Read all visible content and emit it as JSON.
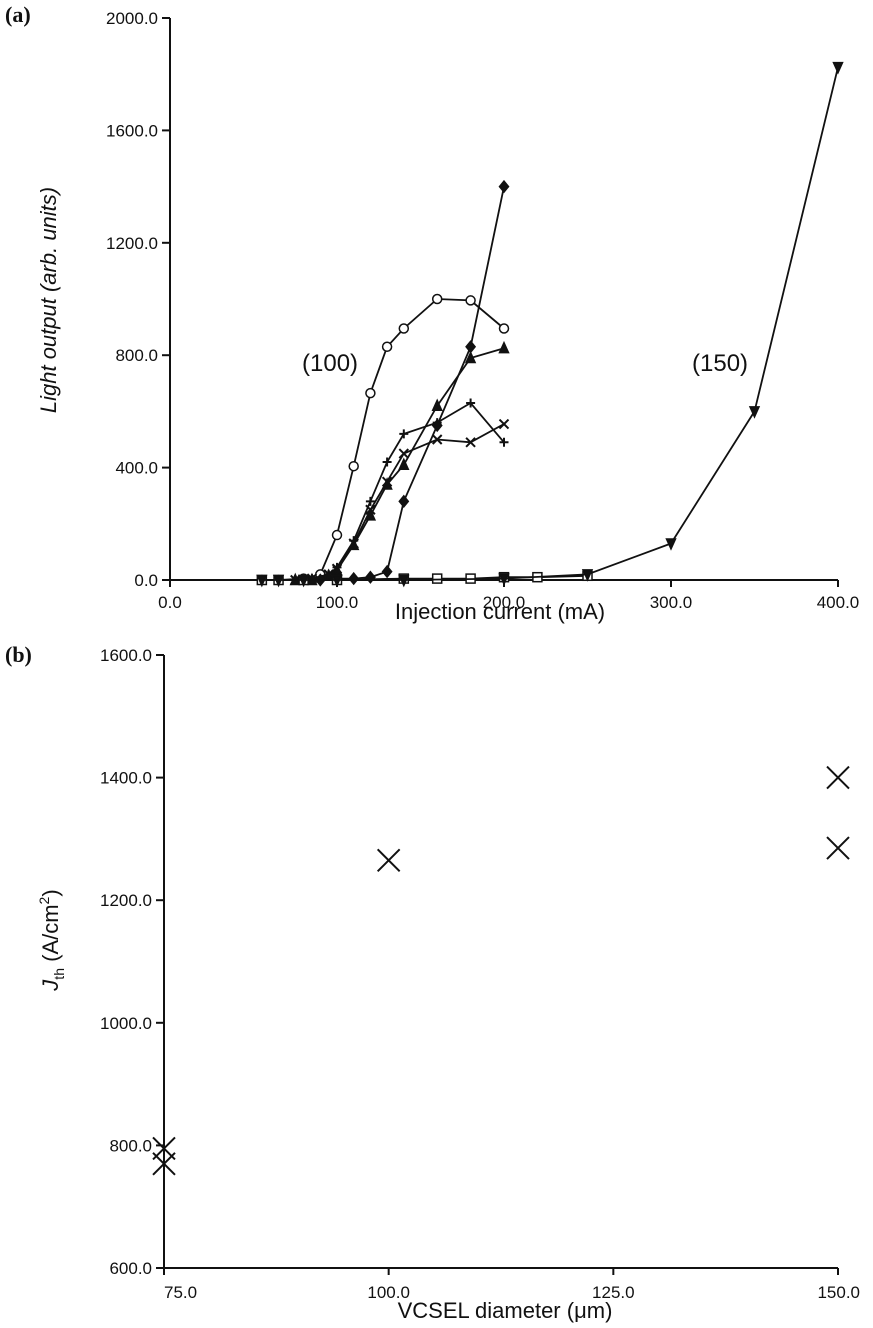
{
  "chart_data": [
    {
      "panel": "(a)",
      "type": "line",
      "xlabel": "Injection current (mA)",
      "ylabel": "Light output (arb. units)",
      "xlim": [
        0,
        400
      ],
      "ylim": [
        0,
        2000
      ],
      "xticks": [
        "0.0",
        "100.0",
        "200.0",
        "300.0",
        "400.0"
      ],
      "yticks": [
        "0.0",
        "400.0",
        "800.0",
        "1200.0",
        "1600.0",
        "2000.0"
      ],
      "annotations": [
        "(100)",
        "(150)"
      ],
      "series": [
        {
          "marker": "circle",
          "x": [
            55,
            65,
            80,
            90,
            100,
            110,
            120,
            130,
            140,
            160,
            180,
            200
          ],
          "y": [
            0,
            0,
            5,
            20,
            160,
            405,
            665,
            830,
            895,
            1000,
            995,
            895
          ]
        },
        {
          "marker": "plus",
          "x": [
            75,
            85,
            95,
            100,
            110,
            120,
            130,
            140,
            160,
            180,
            200
          ],
          "y": [
            0,
            5,
            20,
            45,
            140,
            280,
            420,
            520,
            560,
            630,
            490
          ]
        },
        {
          "marker": "x",
          "x": [
            75,
            85,
            95,
            100,
            110,
            120,
            130,
            140,
            160,
            180,
            200
          ],
          "y": [
            0,
            5,
            20,
            40,
            130,
            250,
            350,
            450,
            500,
            490,
            555
          ]
        },
        {
          "marker": "triangle",
          "x": [
            75,
            85,
            95,
            100,
            110,
            120,
            130,
            140,
            160,
            180,
            200
          ],
          "y": [
            0,
            0,
            15,
            35,
            125,
            230,
            340,
            410,
            620,
            790,
            825
          ]
        },
        {
          "marker": "diamond",
          "x": [
            90,
            100,
            110,
            120,
            130,
            140,
            160,
            180,
            200
          ],
          "y": [
            0,
            5,
            5,
            10,
            30,
            280,
            550,
            830,
            1400
          ]
        },
        {
          "marker": "square",
          "x": [
            55,
            65,
            80,
            100,
            140,
            160,
            180,
            200,
            220,
            250
          ],
          "y": [
            0,
            0,
            0,
            0,
            5,
            5,
            5,
            10,
            10,
            15
          ]
        },
        {
          "marker": "triangle-down",
          "x": [
            55,
            65,
            80,
            100,
            140,
            200,
            250,
            300,
            350,
            400
          ],
          "y": [
            0,
            0,
            0,
            0,
            0,
            5,
            20,
            130,
            600,
            1825
          ]
        }
      ]
    },
    {
      "panel": "(b)",
      "type": "scatter",
      "xlabel": "VCSEL diameter (μm)",
      "ylabel_main": "J",
      "ylabel_sub": "th",
      "ylabel_rest": " (A/cm",
      "ylabel_sup": "2",
      "ylabel_close": ")",
      "xlim": [
        75,
        150
      ],
      "ylim": [
        600,
        1600
      ],
      "xticks": [
        "75.0",
        "100.0",
        "125.0",
        "150.0"
      ],
      "yticks": [
        "600.0",
        "800.0",
        "1000.0",
        "1200.0",
        "1400.0",
        "1600.0"
      ],
      "points": [
        {
          "x": 75,
          "y": 795
        },
        {
          "x": 75,
          "y": 770
        },
        {
          "x": 100,
          "y": 1265
        },
        {
          "x": 150,
          "y": 1400
        },
        {
          "x": 150,
          "y": 1285
        }
      ]
    }
  ]
}
